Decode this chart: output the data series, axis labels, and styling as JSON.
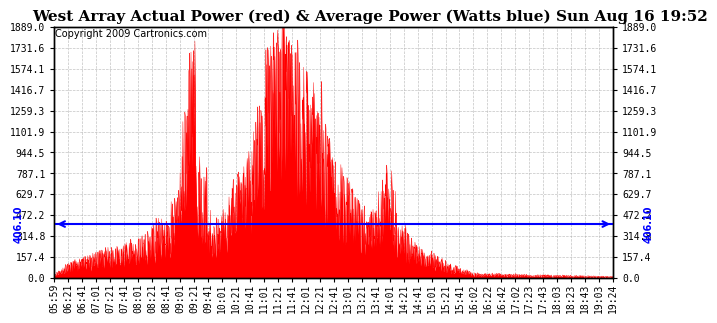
{
  "title": "West Array Actual Power (red) & Average Power (Watts blue) Sun Aug 16 19:52",
  "copyright": "Copyright 2009 Cartronics.com",
  "background_color": "#ffffff",
  "plot_bg_color": "#ffffff",
  "grid_color": "#aaaaaa",
  "avg_line_value": 406.1,
  "avg_line_color": "#0000ff",
  "fill_color": "#ff0000",
  "y_max": 1889.0,
  "y_min": 0.0,
  "y_ticks": [
    0.0,
    157.4,
    314.8,
    472.2,
    629.7,
    787.1,
    944.5,
    1101.9,
    1259.3,
    1416.7,
    1574.1,
    1731.6,
    1889.0
  ],
  "x_labels": [
    "05:59",
    "06:21",
    "06:41",
    "07:01",
    "07:21",
    "07:41",
    "08:01",
    "08:21",
    "08:41",
    "09:01",
    "09:21",
    "09:41",
    "10:01",
    "10:21",
    "10:41",
    "11:01",
    "11:21",
    "11:41",
    "12:01",
    "12:21",
    "12:41",
    "13:01",
    "13:21",
    "13:41",
    "14:01",
    "14:21",
    "14:41",
    "15:01",
    "15:21",
    "15:41",
    "16:02",
    "16:22",
    "16:42",
    "17:02",
    "17:23",
    "17:43",
    "18:03",
    "18:23",
    "18:43",
    "19:03",
    "19:24"
  ],
  "title_fontsize": 11,
  "copyright_fontsize": 7,
  "tick_fontsize": 7,
  "avg_label": "406.10"
}
